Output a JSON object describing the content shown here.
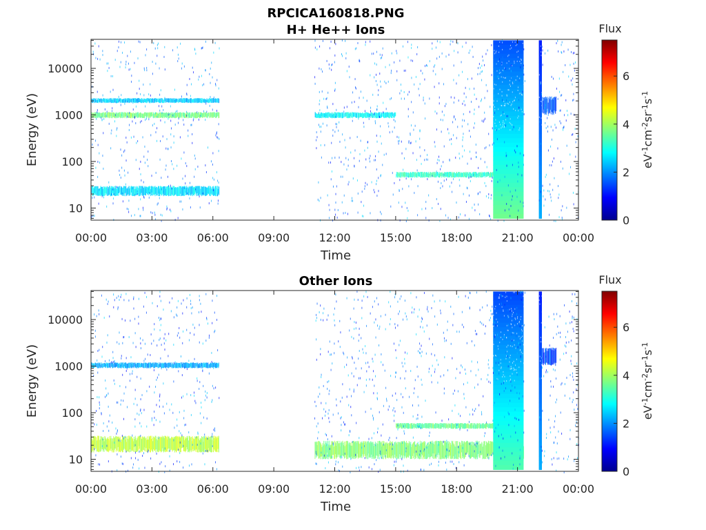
{
  "figure": {
    "title_line1": "RPCICA160818.PNG",
    "title_line2": "H+ He++ Ions"
  },
  "chart_data": [
    {
      "type": "heatmap",
      "title": "H+ He++ Ions",
      "xlabel": "Time",
      "ylabel": "Energy (eV)",
      "x_ticks": [
        "00:00",
        "03:00",
        "06:00",
        "09:00",
        "12:00",
        "15:00",
        "18:00",
        "21:00",
        "00:00"
      ],
      "x_range_hours": [
        0,
        24
      ],
      "y_scale": "log",
      "y_range": [
        5.5,
        42000
      ],
      "y_ticks": [
        10,
        100,
        1000,
        10000
      ],
      "y_tick_labels": [
        "10",
        "100",
        "1000",
        "10000"
      ],
      "colorbar": {
        "label": "Flux",
        "unit_text": "eV-1cm-2sr-1s-1",
        "range": [
          0,
          7.5
        ],
        "ticks": [
          0,
          2,
          4,
          6
        ],
        "colormap": "jet"
      },
      "data_intervals_hours": [
        [
          0,
          6.3
        ],
        [
          11.0,
          21.35
        ],
        [
          22.05,
          24
        ]
      ],
      "features": [
        {
          "t": [
            0,
            6.3
          ],
          "energy": [
            850,
            1150
          ],
          "flux": 3.7
        },
        {
          "t": [
            0,
            6.3
          ],
          "energy": [
            1800,
            2300
          ],
          "flux": 2.4
        },
        {
          "t": [
            0,
            6.3
          ],
          "energy": [
            18,
            30
          ],
          "flux": 2.6
        },
        {
          "t": [
            11.0,
            15.0
          ],
          "energy": [
            850,
            1150
          ],
          "flux": 2.8
        },
        {
          "t": [
            15.0,
            19.8
          ],
          "energy": [
            45,
            60
          ],
          "flux": 3.2
        },
        {
          "t": [
            19.8,
            21.3
          ],
          "energy": [
            6,
            40000
          ],
          "flux": 2.4
        },
        {
          "t": [
            22.05,
            22.2
          ],
          "energy": [
            6,
            40000
          ],
          "flux": 1.2
        },
        {
          "t": [
            22.2,
            22.9
          ],
          "energy": [
            1000,
            2500
          ],
          "flux": 1.5
        }
      ]
    },
    {
      "type": "heatmap",
      "title": "Other Ions",
      "xlabel": "Time",
      "ylabel": "Energy (eV)",
      "x_ticks": [
        "00:00",
        "03:00",
        "06:00",
        "09:00",
        "12:00",
        "15:00",
        "18:00",
        "21:00",
        "00:00"
      ],
      "x_range_hours": [
        0,
        24
      ],
      "y_scale": "log",
      "y_range": [
        5.5,
        42000
      ],
      "y_ticks": [
        10,
        100,
        1000,
        10000
      ],
      "y_tick_labels": [
        "10",
        "100",
        "1000",
        "10000"
      ],
      "colorbar": {
        "label": "Flux",
        "unit_text": "eV-1cm-2sr-1s-1",
        "range": [
          0,
          7.5
        ],
        "ticks": [
          0,
          2,
          4,
          6
        ],
        "colormap": "jet"
      },
      "data_intervals_hours": [
        [
          0,
          6.3
        ],
        [
          11.0,
          21.35
        ],
        [
          22.05,
          24
        ]
      ],
      "features": [
        {
          "t": [
            0,
            6.3
          ],
          "energy": [
            14,
            32
          ],
          "flux": 4.2
        },
        {
          "t": [
            0,
            6.3
          ],
          "energy": [
            900,
            1200
          ],
          "flux": 2.2
        },
        {
          "t": [
            11.0,
            21.3
          ],
          "energy": [
            10,
            25
          ],
          "flux": 3.8
        },
        {
          "t": [
            15.0,
            19.8
          ],
          "energy": [
            45,
            60
          ],
          "flux": 3.6
        },
        {
          "t": [
            19.8,
            21.3
          ],
          "energy": [
            6,
            40000
          ],
          "flux": 2.2
        },
        {
          "t": [
            22.05,
            22.2
          ],
          "energy": [
            6,
            40000
          ],
          "flux": 1.2
        },
        {
          "t": [
            22.2,
            22.9
          ],
          "energy": [
            1000,
            2500
          ],
          "flux": 1.5
        }
      ]
    }
  ]
}
